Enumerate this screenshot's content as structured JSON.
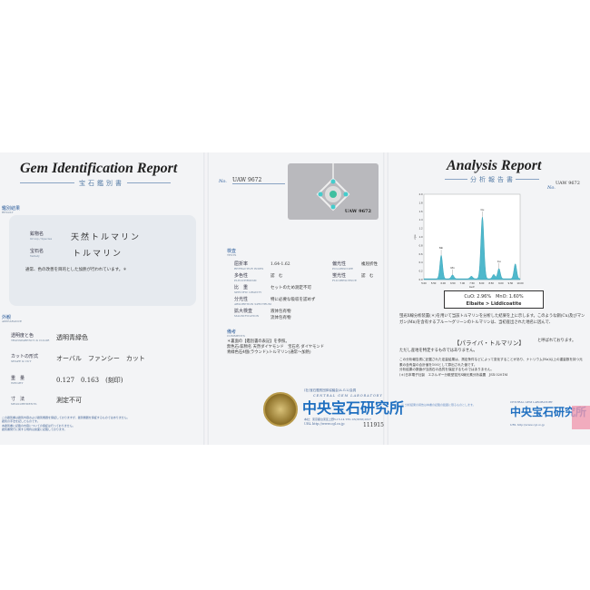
{
  "left": {
    "title": "Gem Identification Report",
    "subtitle": "宝石鑑別書",
    "result_label": "鑑別結果",
    "result_label_en": "RESULT",
    "mineral_label": "鉱物名",
    "mineral_label_en": "Group / Species",
    "mineral": "天然トルマリン",
    "gem_label": "宝石名",
    "gem_label_en": "Variety",
    "gem": "トルマリン",
    "treatment_note": "通常、色の改善を目的とした加熱が行われています。＊",
    "appearance_label": "外観",
    "appearance_label_en": "APPEARANCE",
    "rows": [
      {
        "label": "透明度と色",
        "label_en": "TRANSPARENCY & COLOR",
        "value": "透明青緑色"
      },
      {
        "label": "カットの形式",
        "label_en": "SHAPE & CUT",
        "value": "オーバル　ファンシー　カット"
      },
      {
        "label": "重　量",
        "label_en": "WEIGHT",
        "value": "0.127　0.163　(刻印)"
      },
      {
        "label": "寸　法",
        "label_en": "MEASUREMENTS",
        "value": "測定不可"
      }
    ],
    "footnotes": [
      "この鑑別書は鑑別内容および鑑別機器を保証しておりますが、鑑別機器を保証するものではありません。",
      "鑑別の手法を記したものです。",
      "本鑑別書に記載の内容についての保証は行っておりません。",
      "鑑別書発行に関する規約は裏面に記載しております。"
    ]
  },
  "middle": {
    "no_label": "No.",
    "number": "UAW 9672",
    "photo_caption": "UAW 9672",
    "tests_label": "検査",
    "tests_label_en": "TESTS",
    "tests": [
      {
        "label": "屈折率",
        "label_en": "REFRACTIVE INDEX",
        "value": "1.64-1.62"
      },
      {
        "label": "多色性",
        "label_en": "PLEOCHROISM",
        "value": "認　む"
      },
      {
        "label": "比　重",
        "label_en": "SPECIFIC GRAVITY",
        "value": "セットのため測定不可"
      },
      {
        "label": "分光性",
        "label_en": "ABSORPTION SPECTRUM",
        "value": "特に必要な吸収を認めず"
      },
      {
        "label": "拡大検査",
        "label_en": "MAGNIFICATION",
        "value": "液体包有物"
      }
    ],
    "magnification_extra": "流体包有物",
    "tests_right": [
      {
        "label": "偏光性",
        "label_en": "POLARISCOPE",
        "value": "複屈折性"
      },
      {
        "label": "蛍光性",
        "label_en": "FLUORESCENCE",
        "value": "認　む"
      }
    ],
    "comments_label": "備考",
    "comments_label_en": "COMMENTS",
    "comments": [
      "＊裏面の【鑑別書の表記】を参照。",
      "無色石:鉱物名 天然ダイヤモンド　宝石名 ダイヤモンド",
      "青緑色石4個(ラウンド):トルマリン(通常～加熱)"
    ],
    "org_small": "(社)宝石鑑別団体協議会(A.G.L)会員",
    "org_en": "CENTRAL GEM LABORATORY",
    "org_name": "中央宝石研究所",
    "address": "本社：東京都台東区上野5-15-14 TEL 03(3836)1627",
    "url": "URL http://www.cgl.co.jp",
    "serial": "111915"
  },
  "right": {
    "title": "Analysis Report",
    "subtitle": "分析報告書",
    "no_label": "No.",
    "number": "UAW 9672",
    "result_line1": "CuO: 2.96%　MnO: 1.60%",
    "result_line2": "Elbaite > Liddicoatite",
    "para": "蛍光X線分析装置(＊)を用いて当該トルマリンを分析した結果を上に示します。このような銅(Cu)及びマンガン(Mn)を含有するブルー～グリーンのトルマリンは、当初産出された地名に因んで、",
    "name": "【パライバ・トルマリン】",
    "name_suffix": "と呼ばれております。",
    "note": "ただし産地を特定するものではありません。",
    "small": [
      "この分析報告書に記載された定量結果は、測定条件などによって変化することがあり、ナトリウム(Na)以上の重量数を持つ元素の含有量の合計値を100として算出された値です。",
      "分析結果の数値が当該石の品質を保証するものではありません。",
      "(＊)日本電子社製　エネルギー分散型蛍光X線元素分析装置　JSX-3201M"
    ],
    "org_name": "中央宝石研究所",
    "org_en": "CENTRAL GEM LABORATORY",
    "url": "URL http://www.cgl.co.jp"
  },
  "chart_data": {
    "type": "area",
    "xlabel": "keV",
    "ylabel": "cps",
    "xlim": [
      5.0,
      10.0
    ],
    "ylim": [
      0,
      2.0
    ],
    "xticks": [
      "5.00",
      "5.50",
      "6.00",
      "6.50",
      "7.00",
      "7.50",
      "8.00",
      "8.50",
      "9.00",
      "9.50",
      "10.00"
    ],
    "yticks": [
      "0.0",
      "0.2",
      "0.4",
      "0.6",
      "0.8",
      "1.0",
      "1.2",
      "1.4",
      "1.6",
      "1.8",
      "2.0"
    ],
    "peaks": [
      {
        "x": 5.9,
        "y": 0.55,
        "label": "Mn"
      },
      {
        "x": 6.49,
        "y": 0.09,
        "label": "Mn"
      },
      {
        "x": 7.47,
        "y": 0.06,
        "label": ""
      },
      {
        "x": 8.04,
        "y": 1.45,
        "label": "Cu"
      },
      {
        "x": 8.63,
        "y": 0.1,
        "label": ""
      },
      {
        "x": 8.9,
        "y": 0.24,
        "label": "Cu"
      },
      {
        "x": 9.75,
        "y": 0.35,
        "label": ""
      }
    ],
    "color": "#4fb8cc",
    "grid": false
  }
}
